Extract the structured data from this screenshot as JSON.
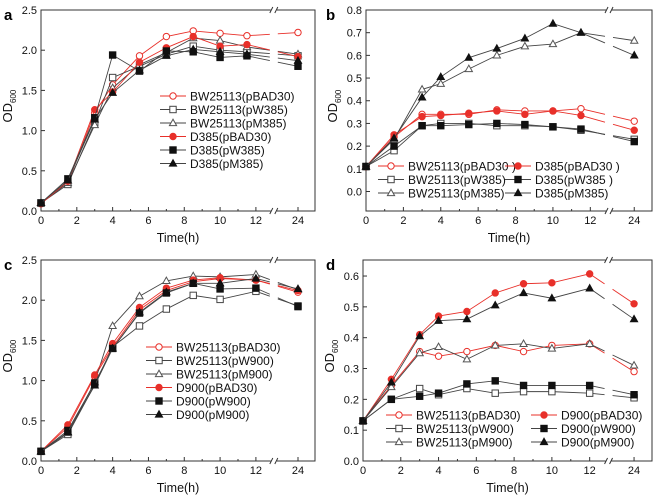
{
  "chart_data": [
    {
      "type": "line",
      "panel_label": "a",
      "xlabel": "Time(h)",
      "ylabel": "OD",
      "ylabel_sub": "600",
      "x": [
        0,
        1.5,
        3,
        4,
        5.5,
        7,
        8.5,
        10,
        11.5,
        24
      ],
      "x_ticks": [
        "0",
        "2",
        "4",
        "6",
        "8",
        "10",
        "12",
        "24"
      ],
      "y_ticks": [
        "0.0",
        "0.5",
        "1.0",
        "1.5",
        "2.0",
        "2.5"
      ],
      "ylim": [
        0,
        2.5
      ],
      "x_axis_break": "between 12 and 24",
      "legend_placement": "center-right",
      "series": [
        {
          "name": "BW25113(pBAD30)",
          "marker": "open-circle",
          "color": "#e8302a",
          "values": [
            0.1,
            0.35,
            1.22,
            1.57,
            1.93,
            2.17,
            2.24,
            2.21,
            2.18,
            2.22
          ]
        },
        {
          "name": "BW25113(pW385)",
          "marker": "open-square",
          "color": "#444444",
          "values": [
            0.1,
            0.33,
            1.1,
            1.66,
            1.8,
            1.95,
            2.05,
            2.0,
            1.98,
            1.93
          ]
        },
        {
          "name": "BW25113(pM385)",
          "marker": "open-triangle",
          "color": "#555555",
          "values": [
            0.1,
            0.35,
            1.07,
            1.53,
            1.82,
            1.97,
            2.15,
            2.12,
            2.04,
            1.95
          ]
        },
        {
          "name": "D385(pBAD30)",
          "marker": "filled-circle",
          "color": "#e8302a",
          "values": [
            0.09,
            0.37,
            1.26,
            1.48,
            1.85,
            2.03,
            2.17,
            2.05,
            2.07,
            1.92
          ]
        },
        {
          "name": "D385(pW385)",
          "marker": "filled-square",
          "color": "#111111",
          "values": [
            0.1,
            0.4,
            1.16,
            1.94,
            1.74,
            1.99,
            1.98,
            1.91,
            1.93,
            1.8
          ]
        },
        {
          "name": "D385(pM385)",
          "marker": "filled-triangle",
          "color": "#111111",
          "values": [
            0.1,
            0.38,
            1.14,
            1.47,
            1.75,
            1.93,
            2.01,
            1.98,
            1.95,
            1.87
          ]
        }
      ]
    },
    {
      "type": "line",
      "panel_label": "b",
      "xlabel": "Time(h)",
      "ylabel": "OD",
      "ylabel_sub": "600",
      "x": [
        0,
        1.5,
        3,
        4,
        5.5,
        7,
        8.5,
        10,
        11.5,
        24
      ],
      "x_ticks": [
        "0",
        "2",
        "4",
        "6",
        "8",
        "10",
        "12",
        "24"
      ],
      "y_ticks": [
        "0.0",
        "0.1",
        "0.2",
        "0.3",
        "0.4",
        "0.5",
        "0.6",
        "0.7",
        "0.8"
      ],
      "ylim": [
        -0.086,
        0.8
      ],
      "x_axis_break": "between 12 and 24",
      "legend_placement": "bottom",
      "series": [
        {
          "name": "BW25113(pBAD30 )",
          "marker": "open-circle",
          "color": "#e8302a",
          "values": [
            0.11,
            0.24,
            0.34,
            0.34,
            0.34,
            0.36,
            0.355,
            0.355,
            0.365,
            0.31
          ]
        },
        {
          "name": "BW25113(pW385)",
          "marker": "open-square",
          "color": "#444444",
          "values": [
            0.11,
            0.18,
            0.29,
            0.3,
            0.3,
            0.29,
            0.29,
            0.285,
            0.27,
            0.23
          ]
        },
        {
          "name": "BW25113(pM385)",
          "marker": "open-triangle",
          "color": "#555555",
          "values": [
            0.11,
            0.23,
            0.45,
            0.475,
            0.54,
            0.6,
            0.64,
            0.65,
            0.7,
            0.665
          ]
        },
        {
          "name": "D385(pBAD30 )",
          "marker": "filled-circle",
          "color": "#e8302a",
          "values": [
            0.11,
            0.25,
            0.33,
            0.335,
            0.345,
            0.355,
            0.34,
            0.355,
            0.335,
            0.27
          ]
        },
        {
          "name": "D385(pW385 )",
          "marker": "filled-square",
          "color": "#111111",
          "values": [
            0.11,
            0.2,
            0.29,
            0.29,
            0.295,
            0.3,
            0.295,
            0.285,
            0.275,
            0.22
          ]
        },
        {
          "name": "D385(pM385)",
          "marker": "filled-triangle",
          "color": "#111111",
          "values": [
            0.11,
            0.235,
            0.415,
            0.505,
            0.59,
            0.63,
            0.675,
            0.74,
            0.7,
            0.6
          ]
        }
      ]
    },
    {
      "type": "line",
      "panel_label": "c",
      "xlabel": "Time(h)",
      "ylabel": "OD",
      "ylabel_sub": "600",
      "x": [
        0,
        1.5,
        3,
        4,
        5.5,
        7,
        8.5,
        10,
        12,
        24
      ],
      "x_ticks": [
        "0",
        "2",
        "4",
        "6",
        "8",
        "10",
        "12",
        "24"
      ],
      "y_ticks": [
        "0.0",
        "0.5",
        "1.0",
        "1.5",
        "2.0",
        "2.5"
      ],
      "ylim": [
        0,
        2.5
      ],
      "x_axis_break": "between 12 and 24",
      "legend_placement": "center-right",
      "series": [
        {
          "name": "BW25113(pBAD30)",
          "marker": "open-circle",
          "color": "#e8302a",
          "values": [
            0.12,
            0.42,
            1.05,
            1.42,
            1.88,
            2.12,
            2.23,
            2.27,
            2.25,
            2.1
          ]
        },
        {
          "name": "BW25113(pW900)",
          "marker": "open-square",
          "color": "#444444",
          "values": [
            0.12,
            0.33,
            0.95,
            1.42,
            1.68,
            1.89,
            2.06,
            2.01,
            2.11,
            1.93
          ]
        },
        {
          "name": "BW25113(pM900)",
          "marker": "open-triangle",
          "color": "#555555",
          "values": [
            0.12,
            0.35,
            0.98,
            1.68,
            2.05,
            2.24,
            2.3,
            2.29,
            2.32,
            2.13
          ]
        },
        {
          "name": "D900(pBAD30)",
          "marker": "filled-circle",
          "color": "#e8302a",
          "values": [
            0.12,
            0.45,
            1.07,
            1.46,
            1.91,
            2.15,
            2.25,
            2.28,
            2.25,
            2.12
          ]
        },
        {
          "name": "D900(pW900)",
          "marker": "filled-square",
          "color": "#111111",
          "values": [
            0.12,
            0.38,
            0.97,
            1.4,
            1.84,
            2.09,
            2.21,
            2.14,
            2.15,
            1.92
          ]
        },
        {
          "name": "D900(pM900)",
          "marker": "filled-triangle",
          "color": "#111111",
          "values": [
            0.12,
            0.36,
            0.94,
            1.4,
            1.85,
            2.1,
            2.21,
            2.21,
            2.27,
            2.14
          ]
        }
      ]
    },
    {
      "type": "line",
      "panel_label": "d",
      "xlabel": "Time(h)",
      "ylabel": "OD",
      "ylabel_sub": "600",
      "x": [
        0,
        1.5,
        3,
        4,
        5.5,
        7,
        8.5,
        10,
        12,
        24
      ],
      "x_ticks": [
        "0",
        "2",
        "4",
        "6",
        "8",
        "10",
        "12",
        "24"
      ],
      "y_ticks": [
        "0.0",
        "0.1",
        "0.2",
        "0.3",
        "0.4",
        "0.5",
        "0.6"
      ],
      "ylim": [
        0,
        0.652
      ],
      "x_axis_break": "between 12 and 24",
      "legend_placement": "bottom",
      "series": [
        {
          "name": "BW25113(pBAD30)",
          "marker": "open-circle",
          "color": "#e8302a",
          "values": [
            0.13,
            0.245,
            0.355,
            0.34,
            0.355,
            0.375,
            0.355,
            0.375,
            0.38,
            0.29
          ]
        },
        {
          "name": "BW25113(pW900)",
          "marker": "open-square",
          "color": "#444444",
          "values": [
            0.13,
            0.2,
            0.235,
            0.215,
            0.235,
            0.22,
            0.225,
            0.225,
            0.22,
            0.205
          ]
        },
        {
          "name": "BW25113(pM900)",
          "marker": "open-triangle",
          "color": "#555555",
          "values": [
            0.13,
            0.24,
            0.35,
            0.37,
            0.33,
            0.375,
            0.38,
            0.365,
            0.38,
            0.31
          ]
        },
        {
          "name": "D900(pBAD30)",
          "marker": "filled-circle",
          "color": "#e8302a",
          "values": [
            0.13,
            0.265,
            0.41,
            0.47,
            0.485,
            0.545,
            0.575,
            0.578,
            0.607,
            0.51
          ]
        },
        {
          "name": "D900(pW900)",
          "marker": "filled-square",
          "color": "#111111",
          "values": [
            0.13,
            0.2,
            0.21,
            0.22,
            0.25,
            0.26,
            0.245,
            0.245,
            0.245,
            0.215
          ]
        },
        {
          "name": "D900(pM900)",
          "marker": "filled-triangle",
          "color": "#111111",
          "values": [
            0.13,
            0.255,
            0.405,
            0.455,
            0.46,
            0.505,
            0.545,
            0.528,
            0.56,
            0.46
          ]
        }
      ]
    }
  ]
}
